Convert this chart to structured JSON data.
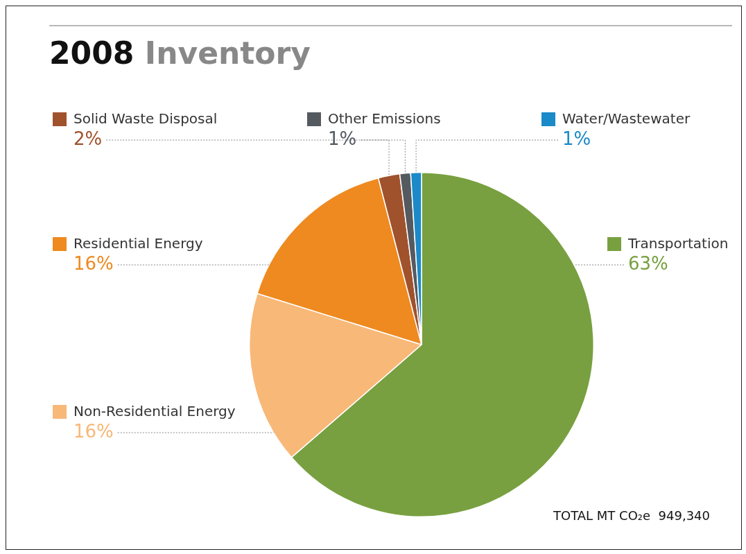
{
  "chart_data": {
    "type": "pie",
    "title": "2008 Inventory",
    "categories": [
      "Transportation",
      "Non-Residential Energy",
      "Residential Energy",
      "Solid Waste Disposal",
      "Other Emissions",
      "Water/Wastewater"
    ],
    "values": [
      63,
      16,
      16,
      2,
      1,
      1
    ],
    "value_labels": [
      "63%",
      "16%",
      "16%",
      "2%",
      "1%",
      "1%"
    ],
    "colors": [
      "#78a040",
      "#f8b878",
      "#ee8a20",
      "#a0522d",
      "#555a60",
      "#1a8ac8"
    ],
    "legend": "left",
    "annotations": [
      "TOTAL MT CO₂e  949,340"
    ]
  }
}
